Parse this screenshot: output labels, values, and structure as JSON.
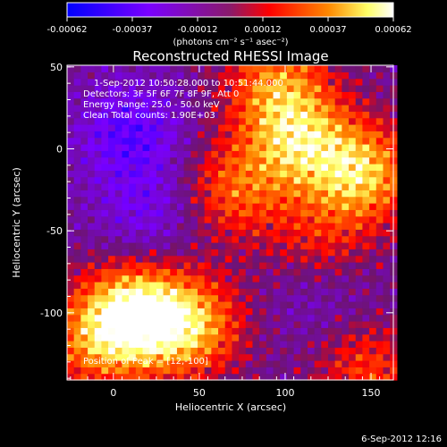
{
  "colorbar": {
    "ticks": [
      "-0.00062",
      "-0.00037",
      "-0.00012",
      "0.00012",
      "0.00037",
      "0.00062"
    ],
    "unit_label": "(photons cm⁻² s⁻¹ asec⁻²)"
  },
  "footer": {
    "timestamp": "6-Sep-2012 12:16"
  },
  "annotations": {
    "time_range": "1-Sep-2012 10:50:28.000 to 10:51:44.000",
    "detectors": "Detectors: 3F 5F 6F 7F 8F 9F, Att 0",
    "energy": "Energy Range: 25.0 - 50.0 keV",
    "clean": "Clean     Total counts: 1.90E+03",
    "peak": "Position of Peak = [12,-100]"
  },
  "chart_data": {
    "type": "heatmap",
    "title": "Reconstructed RHESSI Image",
    "xlabel": "Heliocentric X (arcsec)",
    "ylabel": "Heliocentric Y (arcsec)",
    "xlim": [
      -27,
      163
    ],
    "ylim": [
      -141,
      51
    ],
    "x_ticks": [
      0,
      50,
      100,
      150
    ],
    "y_ticks": [
      50,
      0,
      -50,
      -100
    ],
    "x_tick_labels": [
      "0",
      "50",
      "100",
      "150"
    ],
    "y_tick_labels": [
      "50",
      "0",
      "-50",
      "-100"
    ],
    "colorbar_range": [
      -0.00062,
      0.00062
    ],
    "colormap": [
      "#0000ff",
      "#7a00ff",
      "#6a0a7a",
      "#ff0000",
      "#ff8800",
      "#ffff88",
      "#ffffff"
    ],
    "peak_position": [
      12,
      -100
    ],
    "features": [
      {
        "x": 12,
        "y": -100,
        "value": 0.00062
      },
      {
        "x": 45,
        "y": -108,
        "value": 0.00048
      },
      {
        "x": 145,
        "y": -15,
        "value": 0.00052
      },
      {
        "x": 108,
        "y": 5,
        "value": 0.00045
      },
      {
        "x": 95,
        "y": 40,
        "value": 0.0004
      },
      {
        "x": 70,
        "y": -25,
        "value": 0.00035
      },
      {
        "x": -12,
        "y": -118,
        "value": 0.00033
      },
      {
        "x": 148,
        "y": -135,
        "value": 0.0003
      },
      {
        "x": 120,
        "y": -60,
        "value": 0.00025
      },
      {
        "x": 10,
        "y": 10,
        "value": -0.0003
      },
      {
        "x": 20,
        "y": -40,
        "value": -0.0002
      },
      {
        "x": 120,
        "y": -85,
        "value": -0.00015
      }
    ]
  }
}
